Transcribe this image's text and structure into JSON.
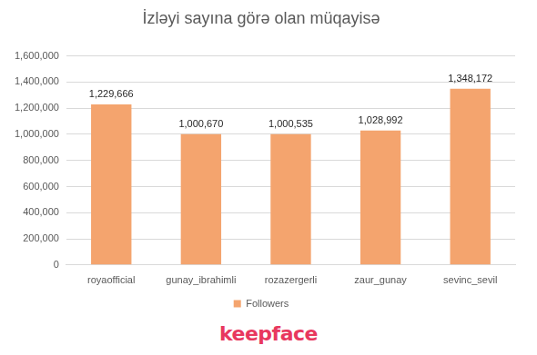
{
  "chart_data": {
    "type": "bar",
    "title": "İzləyi sayına görə olan müqayisə",
    "categories": [
      "royaofficial",
      "gunay_ibrahimli",
      "rozazergerli",
      "zaur_gunay",
      "sevinc_sevil"
    ],
    "series": [
      {
        "name": "Followers",
        "color": "#f4a46e",
        "values": [
          1229666,
          1000670,
          1000535,
          1028992,
          1348172
        ],
        "value_labels": [
          "1,229,666",
          "1,000,670",
          "1,000,535",
          "1,028,992",
          "1,348,172"
        ]
      }
    ],
    "ylim": [
      0,
      1600000
    ],
    "yticks": [
      {
        "value": 0,
        "label": "0"
      },
      {
        "value": 200000,
        "label": "200,000"
      },
      {
        "value": 400000,
        "label": "400,000"
      },
      {
        "value": 600000,
        "label": "600,000"
      },
      {
        "value": 800000,
        "label": "800,000"
      },
      {
        "value": 1000000,
        "label": "1,000,000"
      },
      {
        "value": 1200000,
        "label": "1,200,000"
      },
      {
        "value": 1400000,
        "label": "1,400,000"
      },
      {
        "value": 1600000,
        "label": "1,600,000"
      }
    ],
    "grid": true,
    "legend": "bottom",
    "data_labels": true,
    "annotations": [
      "keepface"
    ]
  }
}
